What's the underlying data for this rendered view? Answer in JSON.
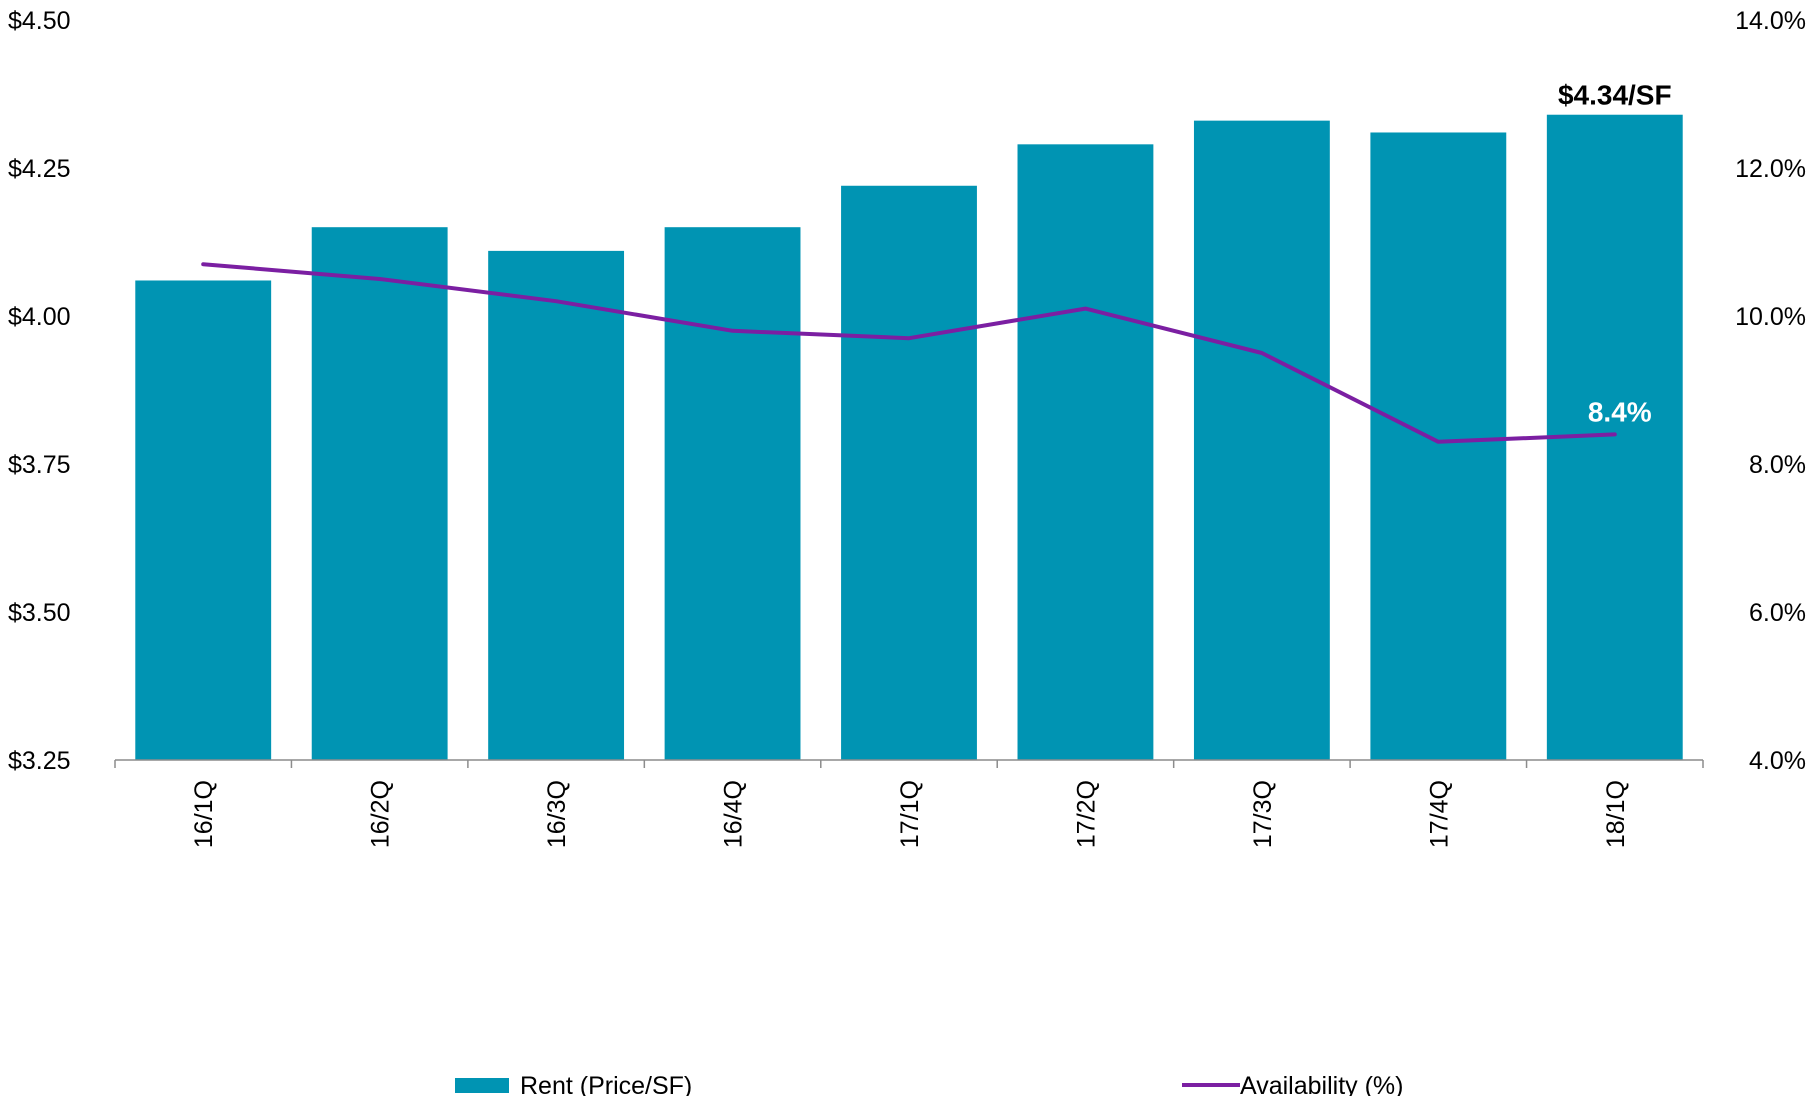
{
  "chart_data": {
    "type": "bar",
    "categories": [
      "16/1Q",
      "16/2Q",
      "16/3Q",
      "16/4Q",
      "17/1Q",
      "17/2Q",
      "17/3Q",
      "17/4Q",
      "18/1Q"
    ],
    "series": [
      {
        "name": "Rent (Price/SF)",
        "type": "bar",
        "axis": "left",
        "color": "#0094b3",
        "values": [
          4.06,
          4.15,
          4.11,
          4.15,
          4.22,
          4.29,
          4.33,
          4.31,
          4.34
        ]
      },
      {
        "name": "Availability (%)",
        "type": "line",
        "axis": "right",
        "color": "#7b1fa2",
        "values": [
          10.7,
          10.5,
          10.2,
          9.8,
          9.7,
          10.1,
          9.5,
          8.3,
          8.4
        ]
      }
    ],
    "y_left": {
      "ylim": [
        3.25,
        4.5
      ],
      "ticks": [
        3.25,
        3.5,
        3.75,
        4.0,
        4.25,
        4.5
      ],
      "tick_labels": [
        "$3.25",
        "$3.50",
        "$3.75",
        "$4.00",
        "$4.25",
        "$4.50"
      ]
    },
    "y_right": {
      "ylim": [
        4.0,
        14.0
      ],
      "ticks": [
        4.0,
        6.0,
        8.0,
        10.0,
        12.0,
        14.0
      ],
      "tick_labels": [
        "4.0%",
        "6.0%",
        "8.0%",
        "10.0%",
        "12.0%",
        "14.0%"
      ]
    },
    "annotations": {
      "bar_last": "$4.34/SF",
      "line_last": "8.4%"
    },
    "legend": {
      "position": "bottom",
      "items": [
        "Rent (Price/SF)",
        "Availability (%)"
      ]
    },
    "grid": false
  }
}
